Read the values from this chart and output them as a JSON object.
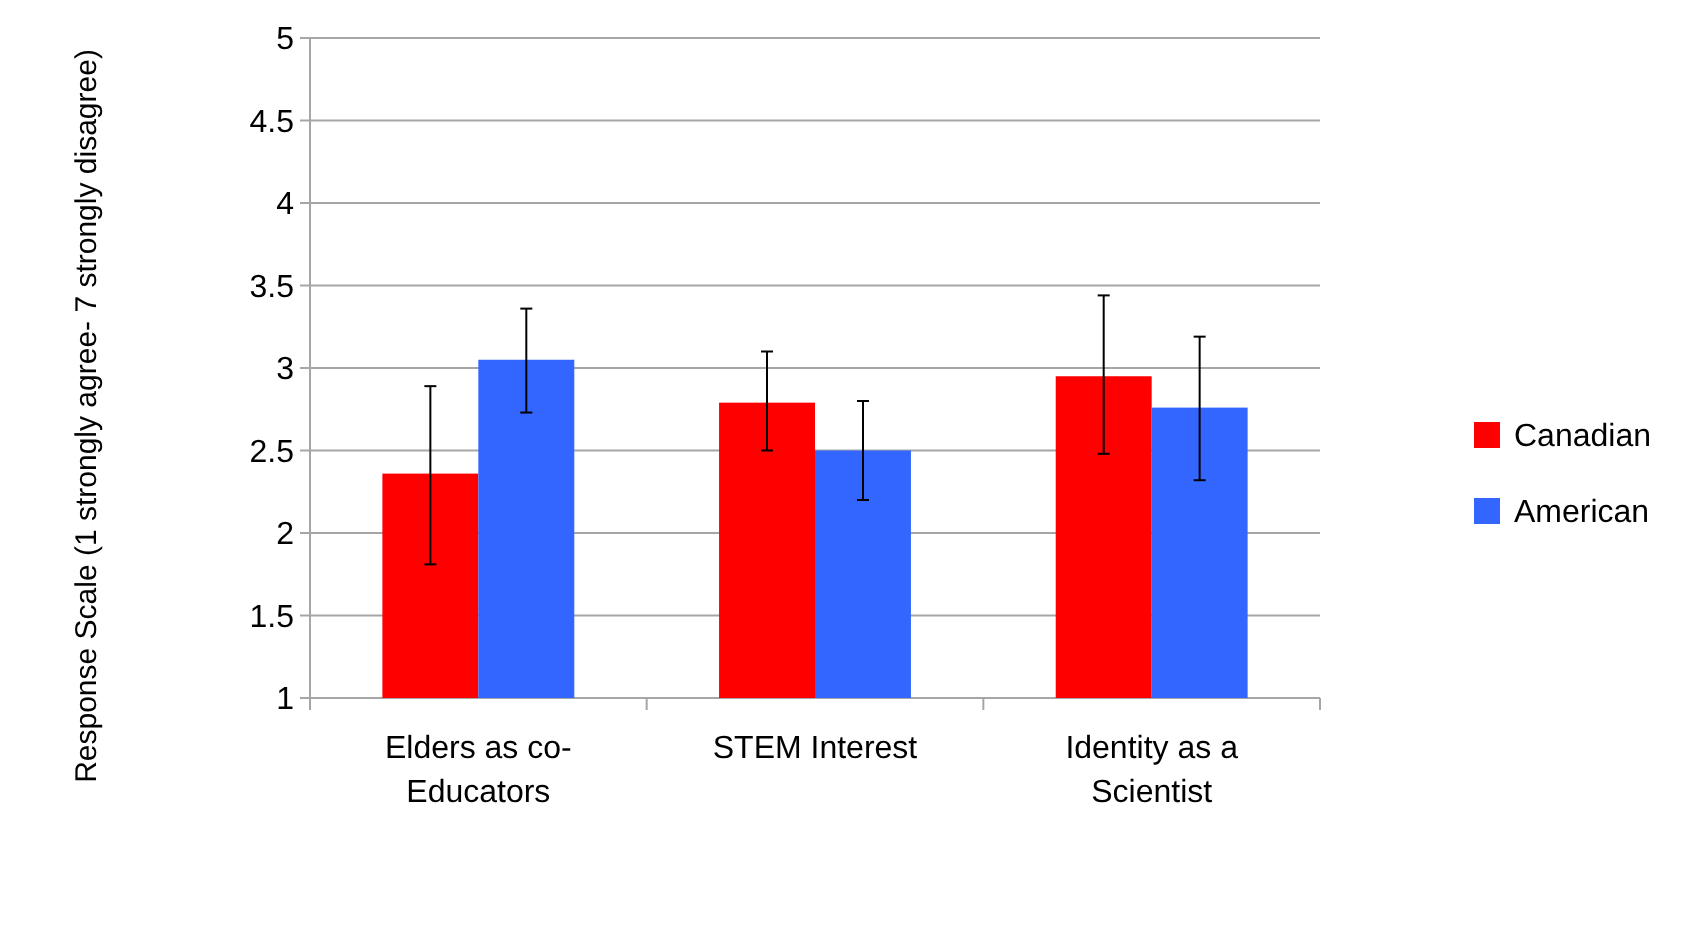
{
  "chart_data": {
    "type": "bar",
    "ylabel": "Response Scale (1 strongly agree- 7 strongly disagree)",
    "categories": [
      "Elders as co-Educators",
      "STEM Interest",
      "Identity as a Scientist"
    ],
    "series": [
      {
        "name": "Canadian",
        "color": "#ff0000",
        "values": [
          2.36,
          2.79,
          2.95
        ],
        "errors": [
          [
            1.81,
            2.89
          ],
          [
            2.5,
            3.1
          ],
          [
            2.48,
            3.44
          ]
        ]
      },
      {
        "name": "American",
        "color": "#3366ff",
        "values": [
          3.05,
          2.5,
          2.76
        ],
        "errors": [
          [
            2.73,
            3.36
          ],
          [
            2.2,
            2.8
          ],
          [
            2.32,
            3.19
          ]
        ]
      }
    ],
    "ylim": [
      1,
      5
    ],
    "yticks": [
      1,
      1.5,
      2,
      2.5,
      3,
      3.5,
      4,
      4.5,
      5
    ],
    "grid": "y",
    "legend": "right"
  }
}
